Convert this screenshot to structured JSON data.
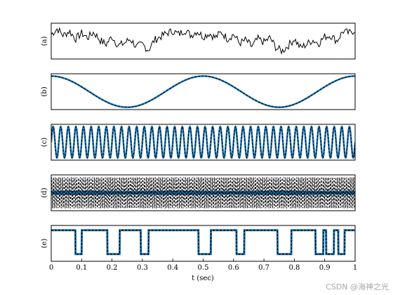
{
  "chart_data": {
    "type": "line",
    "xlabel": "t (sec)",
    "xlim": [
      0,
      1
    ],
    "xticks": [
      "0",
      "0.1",
      "0.2",
      "0.3",
      "0.4",
      "0.5",
      "0.6",
      "0.7",
      "0.8",
      "0.9",
      "1"
    ],
    "colors": {
      "true": "#1f77b4",
      "estimate": "#000000"
    },
    "panels": [
      {
        "label": "(a)",
        "kind": "noise",
        "ylim": [
          -1.6,
          1.6
        ],
        "series": [
          {
            "role": "observed",
            "style": "solid-black",
            "x": [
              0,
              0.02,
              0.04,
              0.06,
              0.08,
              0.1,
              0.12,
              0.14,
              0.16,
              0.18,
              0.2,
              0.22,
              0.24,
              0.26,
              0.28,
              0.3,
              0.32,
              0.34,
              0.36,
              0.38,
              0.4,
              0.42,
              0.44,
              0.46,
              0.48,
              0.5,
              0.52,
              0.54,
              0.56,
              0.58,
              0.6,
              0.62,
              0.64,
              0.66,
              0.68,
              0.7,
              0.72,
              0.74,
              0.76,
              0.78,
              0.8,
              0.82,
              0.84,
              0.86,
              0.88,
              0.9,
              0.92,
              0.94,
              0.96,
              0.98,
              1
            ],
            "values": [
              0.6,
              1.1,
              0.5,
              0.9,
              0.2,
              0.7,
              0.3,
              0.8,
              0.1,
              -0.3,
              0.4,
              -0.4,
              -0.2,
              0.2,
              -0.5,
              -0.3,
              -0.8,
              0.1,
              0.4,
              0.7,
              0.9,
              0.6,
              1.0,
              0.5,
              0.9,
              0.4,
              0.7,
              0.3,
              0.8,
              0.2,
              0.6,
              -0.2,
              0.1,
              -0.5,
              0.2,
              -0.1,
              0.3,
              -0.6,
              -0.9,
              -0.4,
              0.2,
              -0.6,
              -0.3,
              0.1,
              -0.2,
              0.4,
              0.5,
              0.0,
              0.9,
              0.7,
              1.0
            ]
          }
        ]
      },
      {
        "label": "(b)",
        "kind": "sine",
        "ylim": [
          -1.15,
          1.15
        ],
        "freq": 2,
        "phase": 1.5708,
        "series": [
          {
            "role": "true",
            "style": "solid-blue"
          },
          {
            "role": "estimate",
            "style": "dashed-black"
          }
        ]
      },
      {
        "label": "(c)",
        "kind": "sine",
        "ylim": [
          -1.15,
          1.15
        ],
        "freq": 40,
        "phase": 0,
        "series": [
          {
            "role": "true",
            "style": "solid-blue"
          },
          {
            "role": "estimate",
            "style": "dashed-black"
          }
        ]
      },
      {
        "label": "(d)",
        "kind": "sine",
        "ylim": [
          -1.15,
          1.15
        ],
        "freq": 170,
        "phase": 0,
        "series": [
          {
            "role": "true",
            "style": "solid-blue",
            "amplitude": 0.08
          },
          {
            "role": "estimate",
            "style": "dashed-black"
          }
        ]
      },
      {
        "label": "(e)",
        "kind": "pulses",
        "ylim": [
          -1.3,
          0.2
        ],
        "baseline": 0,
        "level": -1,
        "series": [
          {
            "role": "true",
            "style": "solid-blue"
          },
          {
            "role": "estimate",
            "style": "dashed-black"
          }
        ],
        "pulses": [
          [
            0.08,
            0.1
          ],
          [
            0.185,
            0.215
          ],
          [
            0.205,
            0.225
          ],
          [
            0.295,
            0.32
          ],
          [
            0.485,
            0.505
          ],
          [
            0.505,
            0.525
          ],
          [
            0.61,
            0.635
          ],
          [
            0.745,
            0.765
          ],
          [
            0.77,
            0.79
          ],
          [
            0.755,
            0.775
          ],
          [
            0.87,
            0.895
          ],
          [
            0.905,
            0.93
          ],
          [
            0.945,
            0.965
          ]
        ]
      }
    ]
  },
  "watermark": "CSDN @海神之光"
}
